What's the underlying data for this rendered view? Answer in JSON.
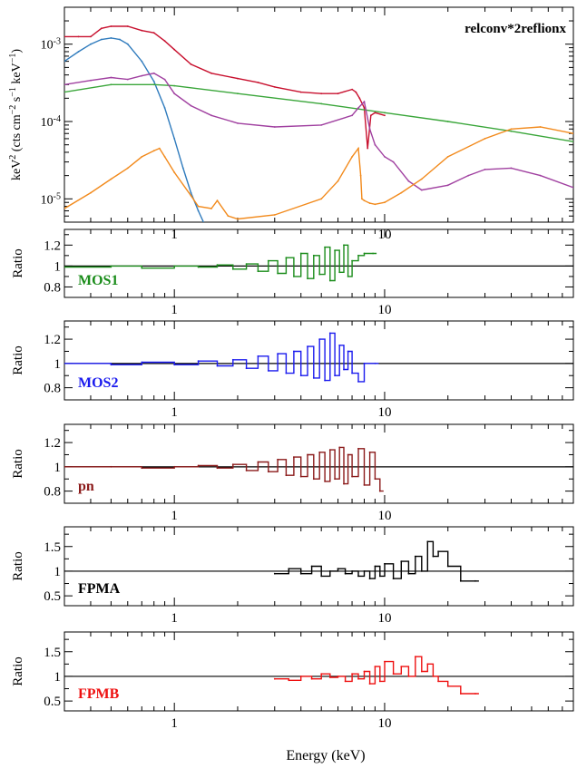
{
  "figure": {
    "xlabel": "Energy (keV)"
  },
  "chart_data": [
    {
      "type": "line",
      "title": "",
      "annotation": "relconv*2reflionx",
      "xlabel": "",
      "ylabel": "keV^2 (cts cm^-2 s^-1 keV^-1)",
      "xscale": "log",
      "yscale": "log",
      "xlim": [
        0.3,
        79
      ],
      "ylim": [
        5e-06,
        0.003
      ],
      "xticks": [
        1,
        10
      ],
      "xtick_labels": [
        "1",
        "10"
      ],
      "yticks": [
        1e-05,
        0.0001,
        0.001
      ],
      "ytick_labels": [
        "10^-5",
        "10^-4",
        "10^-3"
      ],
      "series": [
        {
          "color": "#c8102e",
          "x": [
            0.3,
            0.35,
            0.4,
            0.45,
            0.5,
            0.6,
            0.7,
            0.8,
            0.9,
            1.0,
            1.2,
            1.5,
            2.0,
            2.5,
            3.0,
            4.0,
            5.0,
            6.0,
            7.0,
            7.3,
            7.6,
            8.0,
            8.3,
            8.6,
            9.0,
            10.0
          ],
          "y": [
            0.00125,
            0.00125,
            0.00125,
            0.0016,
            0.0017,
            0.0017,
            0.0015,
            0.0014,
            0.0011,
            0.00085,
            0.00055,
            0.00042,
            0.00036,
            0.00032,
            0.00028,
            0.00024,
            0.00023,
            0.00023,
            0.00026,
            0.00024,
            0.0002,
            0.00015,
            4.5e-05,
            0.00012,
            0.00013,
            0.00012
          ]
        },
        {
          "color": "#2f7bbd",
          "x": [
            0.3,
            0.35,
            0.4,
            0.45,
            0.5,
            0.55,
            0.6,
            0.7,
            0.8,
            0.9,
            1.0,
            1.1,
            1.2,
            1.3,
            1.4,
            1.5
          ],
          "y": [
            0.0006,
            0.0008,
            0.001,
            0.00115,
            0.0012,
            0.00115,
            0.001,
            0.0006,
            0.00033,
            0.00015,
            6e-05,
            2.5e-05,
            1.2e-05,
            7e-06,
            4.5e-06,
            3e-06
          ]
        },
        {
          "color": "#3aa63a",
          "x": [
            0.3,
            0.5,
            0.8,
            1,
            2,
            5,
            10,
            20,
            40,
            79
          ],
          "y": [
            0.00024,
            0.0003,
            0.0003,
            0.00029,
            0.00023,
            0.00017,
            0.00013,
            0.0001,
            7.5e-05,
            5.5e-05
          ]
        },
        {
          "color": "#a040a0",
          "x": [
            0.3,
            0.4,
            0.5,
            0.6,
            0.7,
            0.8,
            0.9,
            1.0,
            1.2,
            1.5,
            2.0,
            3.0,
            5.0,
            7.0,
            7.5,
            8.0,
            8.5,
            9.0,
            10.0,
            11.0,
            13.0,
            15.0,
            20.0,
            25.0,
            30.0,
            40.0,
            55.0,
            79.0
          ],
          "y": [
            0.0003,
            0.00034,
            0.00037,
            0.00035,
            0.00039,
            0.00042,
            0.00035,
            0.00023,
            0.00016,
            0.00012,
            9.5e-05,
            8.5e-05,
            9e-05,
            0.00012,
            0.00015,
            0.00018,
            8e-05,
            5e-05,
            3.5e-05,
            3e-05,
            1.7e-05,
            1.3e-05,
            1.5e-05,
            2e-05,
            2.4e-05,
            2.5e-05,
            2e-05,
            1.4e-05
          ]
        },
        {
          "color": "#f28a1c",
          "x": [
            0.3,
            0.4,
            0.5,
            0.6,
            0.7,
            0.8,
            0.85,
            0.9,
            1.0,
            1.2,
            1.3,
            1.5,
            1.6,
            1.8,
            2.0,
            3.0,
            5.0,
            6.0,
            7.0,
            7.5,
            7.7,
            7.8,
            8.0,
            8.5,
            9.0,
            10.0,
            12.0,
            15.0,
            20.0,
            30.0,
            40.0,
            55.0,
            79.0
          ],
          "y": [
            7.5e-06,
            1.2e-05,
            1.8e-05,
            2.5e-05,
            3.5e-05,
            4.2e-05,
            4.5e-05,
            3.5e-05,
            2.2e-05,
            1.1e-05,
            8e-06,
            7.5e-06,
            9.5e-06,
            6e-06,
            5.5e-06,
            6.2e-06,
            1e-05,
            1.7e-05,
            3.5e-05,
            4.5e-05,
            2e-05,
            1e-05,
            9.5e-06,
            8.8e-06,
            8.5e-06,
            9e-06,
            1.2e-05,
            1.8e-05,
            3.5e-05,
            6e-05,
            8e-05,
            8.5e-05,
            7e-05
          ]
        }
      ]
    },
    {
      "type": "line",
      "label": "MOS1",
      "label_color": "#1a8c1a",
      "ylabel": "Ratio",
      "xscale": "log",
      "xlim": [
        0.3,
        79
      ],
      "ylim": [
        0.7,
        1.35
      ],
      "yticks": [
        0.8,
        1,
        1.2
      ],
      "ytick_labels": [
        "0.8",
        "1",
        "1.2"
      ],
      "xticks": [
        1,
        10
      ],
      "xtick_labels": [
        "1",
        "10"
      ],
      "series": [
        {
          "name": "MOS1",
          "color": "#1a8c1a",
          "x": [
            0.3,
            0.5,
            0.7,
            1.0,
            1.3,
            1.6,
            1.9,
            2.2,
            2.5,
            2.8,
            3.1,
            3.4,
            3.7,
            4.0,
            4.3,
            4.6,
            4.9,
            5.2,
            5.5,
            5.8,
            6.1,
            6.4,
            6.7,
            7.0,
            7.5,
            8.0,
            8.8
          ],
          "y": [
            0.99,
            1.0,
            0.98,
            1.0,
            0.99,
            1.01,
            0.97,
            1.02,
            0.95,
            1.05,
            0.93,
            1.08,
            0.9,
            1.12,
            0.88,
            1.1,
            0.92,
            1.18,
            0.86,
            1.15,
            0.94,
            1.2,
            0.9,
            1.05,
            1.1,
            1.12,
            1.12
          ]
        }
      ]
    },
    {
      "type": "line",
      "label": "MOS2",
      "label_color": "#1a1aee",
      "ylabel": "Ratio",
      "xscale": "log",
      "xlim": [
        0.3,
        79
      ],
      "ylim": [
        0.7,
        1.35
      ],
      "yticks": [
        0.8,
        1,
        1.2
      ],
      "ytick_labels": [
        "0.8",
        "1",
        "1.2"
      ],
      "xticks": [
        1,
        10
      ],
      "xtick_labels": [
        "1",
        "10"
      ],
      "series": [
        {
          "name": "MOS2",
          "color": "#1a1aee",
          "x": [
            0.3,
            0.5,
            0.7,
            1.0,
            1.3,
            1.6,
            1.9,
            2.2,
            2.5,
            2.8,
            3.1,
            3.4,
            3.7,
            4.0,
            4.3,
            4.6,
            4.9,
            5.2,
            5.5,
            5.8,
            6.1,
            6.4,
            6.7,
            7.0,
            7.5,
            8.0,
            9.0
          ],
          "y": [
            1.0,
            0.99,
            1.01,
            0.99,
            1.02,
            0.98,
            1.03,
            0.96,
            1.06,
            0.94,
            1.08,
            0.92,
            1.1,
            0.9,
            1.14,
            0.88,
            1.2,
            0.86,
            1.25,
            0.9,
            1.15,
            0.95,
            1.1,
            0.92,
            0.85,
            1.0,
            1.0
          ]
        }
      ]
    },
    {
      "type": "line",
      "label": "pn",
      "label_color": "#8b1a1a",
      "ylabel": "Ratio",
      "xscale": "log",
      "xlim": [
        0.3,
        79
      ],
      "ylim": [
        0.7,
        1.35
      ],
      "yticks": [
        0.8,
        1,
        1.2
      ],
      "ytick_labels": [
        "0.8",
        "1",
        "1.2"
      ],
      "xticks": [
        1,
        10
      ],
      "xtick_labels": [
        "1",
        "10"
      ],
      "series": [
        {
          "name": "pn",
          "color": "#8b1a1a",
          "x": [
            0.3,
            0.5,
            0.7,
            1.0,
            1.3,
            1.6,
            1.9,
            2.2,
            2.5,
            2.8,
            3.1,
            3.4,
            3.7,
            4.0,
            4.3,
            4.6,
            4.9,
            5.2,
            5.5,
            5.8,
            6.1,
            6.4,
            6.7,
            7.0,
            7.5,
            8.0,
            8.5,
            9.0,
            9.5
          ],
          "y": [
            1.0,
            1.0,
            0.99,
            1.0,
            1.01,
            0.99,
            1.02,
            0.97,
            1.04,
            0.96,
            1.06,
            0.93,
            1.08,
            0.92,
            1.1,
            0.9,
            1.12,
            0.88,
            1.14,
            0.9,
            1.16,
            0.86,
            1.1,
            0.92,
            1.15,
            0.85,
            1.12,
            0.9,
            0.8
          ]
        }
      ]
    },
    {
      "type": "line",
      "label": "FPMA",
      "label_color": "#000000",
      "ylabel": "Ratio",
      "xscale": "log",
      "xlim": [
        0.3,
        79
      ],
      "ylim": [
        0.3,
        1.9
      ],
      "yticks": [
        0.5,
        1,
        1.5
      ],
      "ytick_labels": [
        "0.5",
        "1",
        "1.5"
      ],
      "xticks": [
        1,
        10
      ],
      "xtick_labels": [
        "1",
        "10"
      ],
      "series": [
        {
          "name": "FPMA",
          "color": "#000000",
          "x": [
            3.0,
            3.5,
            4.0,
            4.5,
            5.0,
            5.5,
            6.0,
            6.5,
            7.0,
            7.5,
            8.0,
            8.5,
            9.0,
            9.5,
            10.0,
            11.0,
            12.0,
            13.0,
            14.0,
            15.0,
            16.0,
            17.0,
            18.0,
            20.0,
            23.0,
            27.0
          ],
          "y": [
            0.95,
            1.05,
            0.95,
            1.1,
            0.9,
            1.0,
            1.05,
            0.95,
            1.0,
            0.9,
            1.0,
            0.85,
            1.1,
            0.9,
            1.15,
            0.85,
            1.2,
            0.95,
            1.3,
            1.0,
            1.6,
            1.3,
            1.4,
            1.1,
            0.8,
            0.8
          ]
        }
      ]
    },
    {
      "type": "line",
      "label": "FPMB",
      "label_color": "#ee1111",
      "ylabel": "Ratio",
      "xscale": "log",
      "xlim": [
        0.3,
        79
      ],
      "ylim": [
        0.3,
        1.9
      ],
      "yticks": [
        0.5,
        1,
        1.5
      ],
      "ytick_labels": [
        "0.5",
        "1",
        "1.5"
      ],
      "xticks": [
        1,
        10
      ],
      "xtick_labels": [
        "1",
        "10"
      ],
      "series": [
        {
          "name": "FPMB",
          "color": "#ee1111",
          "x": [
            3.0,
            3.5,
            4.0,
            4.5,
            5.0,
            5.5,
            6.0,
            6.5,
            7.0,
            7.5,
            8.0,
            8.5,
            9.0,
            9.5,
            10.0,
            11.0,
            12.0,
            13.0,
            14.0,
            15.0,
            16.0,
            17.0,
            18.0,
            20.0,
            23.0,
            27.0
          ],
          "y": [
            0.95,
            0.92,
            1.0,
            0.95,
            1.05,
            0.98,
            1.0,
            0.9,
            1.05,
            0.95,
            1.1,
            0.85,
            1.2,
            0.9,
            1.3,
            1.05,
            1.2,
            1.0,
            1.4,
            1.1,
            1.25,
            1.0,
            0.9,
            0.8,
            0.65,
            0.65
          ]
        }
      ]
    }
  ]
}
